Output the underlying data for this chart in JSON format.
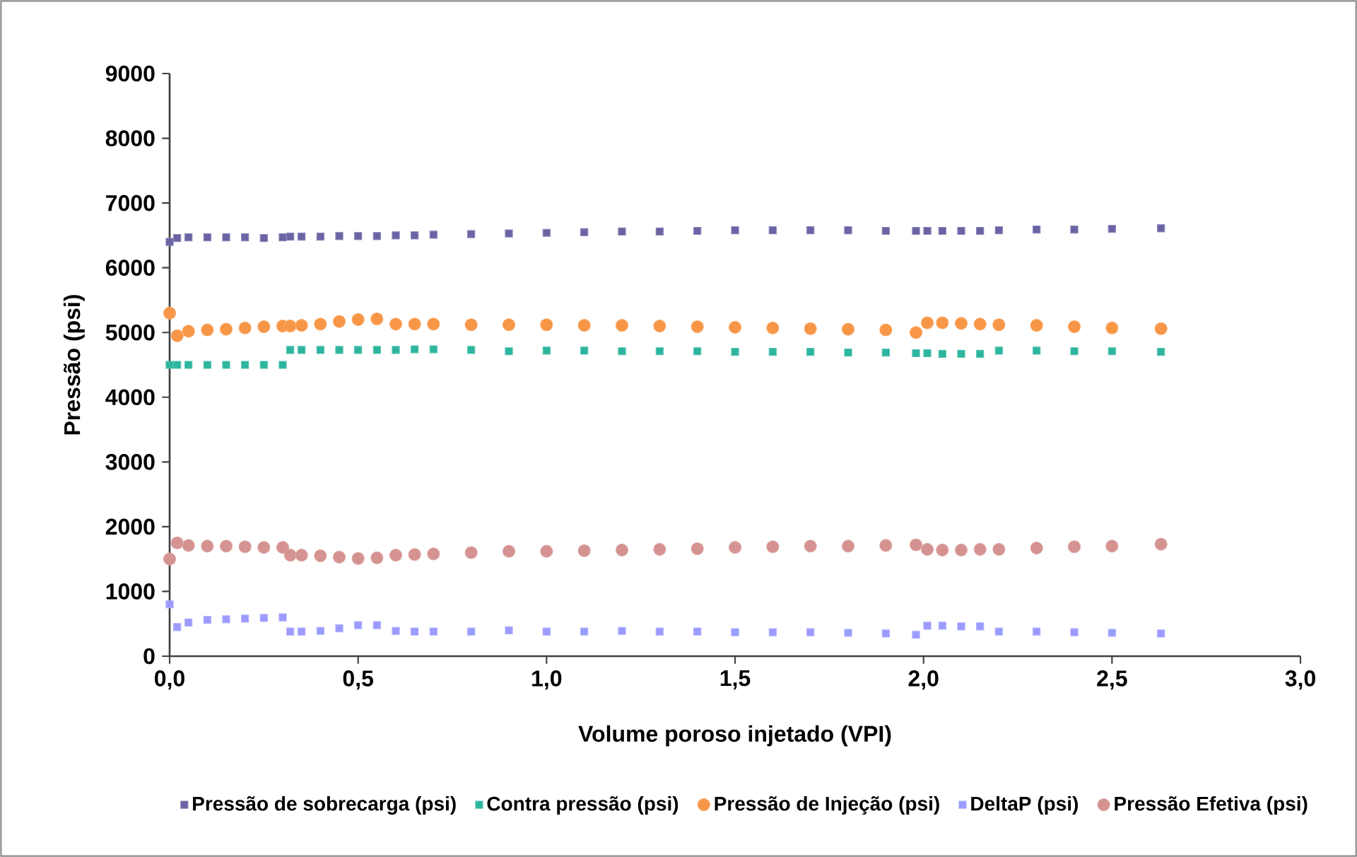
{
  "chart_data": {
    "type": "scatter",
    "xlabel": "Volume poroso injetado (VPI)",
    "ylabel": "Pressão (psi)",
    "x": [
      0,
      0.02,
      0.05,
      0.1,
      0.15,
      0.2,
      0.25,
      0.3,
      0.32,
      0.35,
      0.4,
      0.45,
      0.5,
      0.55,
      0.6,
      0.65,
      0.7,
      0.8,
      0.9,
      1.0,
      1.1,
      1.2,
      1.3,
      1.4,
      1.5,
      1.6,
      1.7,
      1.8,
      1.9,
      1.98,
      2.01,
      2.05,
      2.1,
      2.15,
      2.2,
      2.3,
      2.4,
      2.5,
      2.63
    ],
    "series": [
      {
        "name": "Pressão de sobrecarga (psi)",
        "color": "#6a64a4",
        "marker": "square",
        "values": [
          6400,
          6460,
          6470,
          6470,
          6470,
          6470,
          6460,
          6470,
          6480,
          6480,
          6480,
          6490,
          6490,
          6490,
          6500,
          6500,
          6510,
          6520,
          6530,
          6540,
          6550,
          6560,
          6560,
          6570,
          6580,
          6580,
          6580,
          6580,
          6570,
          6570,
          6570,
          6570,
          6570,
          6570,
          6580,
          6590,
          6590,
          6600,
          6610
        ]
      },
      {
        "name": "Contra pressão (psi)",
        "color": "#2db59e",
        "marker": "square",
        "values": [
          4500,
          4500,
          4500,
          4500,
          4500,
          4500,
          4500,
          4500,
          4730,
          4730,
          4730,
          4730,
          4730,
          4730,
          4730,
          4740,
          4740,
          4730,
          4710,
          4720,
          4720,
          4710,
          4710,
          4710,
          4700,
          4700,
          4700,
          4690,
          4690,
          4680,
          4680,
          4670,
          4670,
          4670,
          4720,
          4720,
          4710,
          4710,
          4700
        ]
      },
      {
        "name": "Pressão de Injeção (psi)",
        "color": "#f79646",
        "marker": "circle",
        "values": [
          5300,
          4950,
          5020,
          5040,
          5050,
          5070,
          5090,
          5100,
          5100,
          5110,
          5130,
          5170,
          5200,
          5210,
          5130,
          5130,
          5130,
          5120,
          5120,
          5120,
          5110,
          5110,
          5100,
          5090,
          5080,
          5070,
          5060,
          5050,
          5040,
          5000,
          5150,
          5150,
          5140,
          5130,
          5120,
          5110,
          5090,
          5070,
          5060
        ]
      },
      {
        "name": "DeltaP (psi)",
        "color": "#9b9bff",
        "marker": "square",
        "values": [
          800,
          450,
          520,
          560,
          570,
          580,
          590,
          600,
          380,
          380,
          390,
          430,
          480,
          480,
          390,
          380,
          380,
          380,
          400,
          380,
          380,
          390,
          380,
          380,
          370,
          370,
          370,
          360,
          350,
          330,
          470,
          470,
          460,
          460,
          380,
          380,
          370,
          360,
          350
        ]
      },
      {
        "name": "Pressão Efetiva (psi)",
        "color": "#d49290",
        "marker": "circle",
        "values": [
          1500,
          1750,
          1710,
          1700,
          1700,
          1690,
          1680,
          1680,
          1560,
          1560,
          1550,
          1530,
          1510,
          1520,
          1560,
          1570,
          1580,
          1600,
          1620,
          1620,
          1630,
          1640,
          1650,
          1660,
          1680,
          1690,
          1700,
          1700,
          1710,
          1720,
          1650,
          1640,
          1640,
          1650,
          1650,
          1670,
          1690,
          1700,
          1730
        ]
      }
    ],
    "xlim": [
      0,
      3
    ],
    "ylim": [
      0,
      9000
    ],
    "xticks": [
      {
        "value": 0,
        "label": "0,0"
      },
      {
        "value": 0.5,
        "label": "0,5"
      },
      {
        "value": 1,
        "label": "1,0"
      },
      {
        "value": 1.5,
        "label": "1,5"
      },
      {
        "value": 2,
        "label": "2,0"
      },
      {
        "value": 2.5,
        "label": "2,5"
      },
      {
        "value": 3,
        "label": "3,0"
      }
    ],
    "yticks": [
      0,
      1000,
      2000,
      3000,
      4000,
      5000,
      6000,
      7000,
      8000,
      9000
    ],
    "legend": "bottom"
  }
}
